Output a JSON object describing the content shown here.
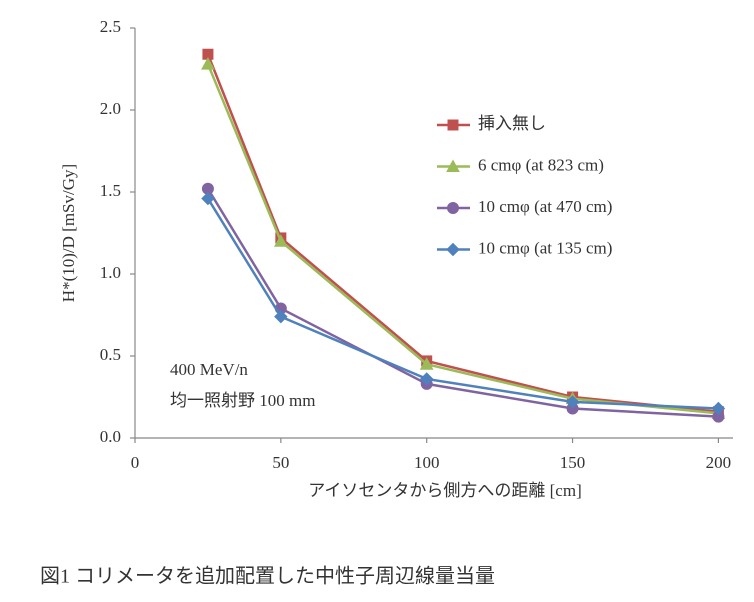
{
  "chart_data": {
    "type": "line",
    "y_label": "H*(10)/D [mSv/Gy]",
    "x_label": "アイソセンタから側方への距離 [cm]",
    "annotations": [
      "400 MeV/n",
      "均一照射野 100 mm"
    ],
    "caption": "図1 コリメータを追加配置した中性子周辺線量当量",
    "x": [
      25,
      50,
      100,
      150,
      200
    ],
    "series": [
      {
        "name": "挿入無し",
        "color": "#c0504d",
        "marker": "square",
        "values": [
          2.34,
          1.22,
          0.47,
          0.25,
          0.16
        ]
      },
      {
        "name": "6 cmφ (at 823 cm)",
        "color": "#9bbb59",
        "marker": "triangle",
        "values": [
          2.28,
          1.2,
          0.45,
          0.24,
          0.15
        ]
      },
      {
        "name": "10 cmφ (at 470 cm)",
        "color": "#8064a2",
        "marker": "circle",
        "values": [
          1.52,
          0.79,
          0.33,
          0.18,
          0.13
        ]
      },
      {
        "name": "10 cmφ (at 135 cm)",
        "color": "#4f81bd",
        "marker": "diamond",
        "values": [
          1.46,
          0.74,
          0.36,
          0.22,
          0.18
        ]
      }
    ],
    "xlim": [
      0,
      205
    ],
    "xticks": [
      0,
      50,
      100,
      150,
      200
    ],
    "ylim": [
      0,
      2.5
    ],
    "yticks": [
      {
        "value": 0,
        "label": "0.0"
      },
      {
        "value": 0.5,
        "label": "0.5"
      },
      {
        "value": 1,
        "label": "1.0"
      },
      {
        "value": 1.5,
        "label": "1.5"
      },
      {
        "value": 2,
        "label": "2.0"
      },
      {
        "value": 2.5,
        "label": "2.5"
      }
    ],
    "grid": false
  }
}
